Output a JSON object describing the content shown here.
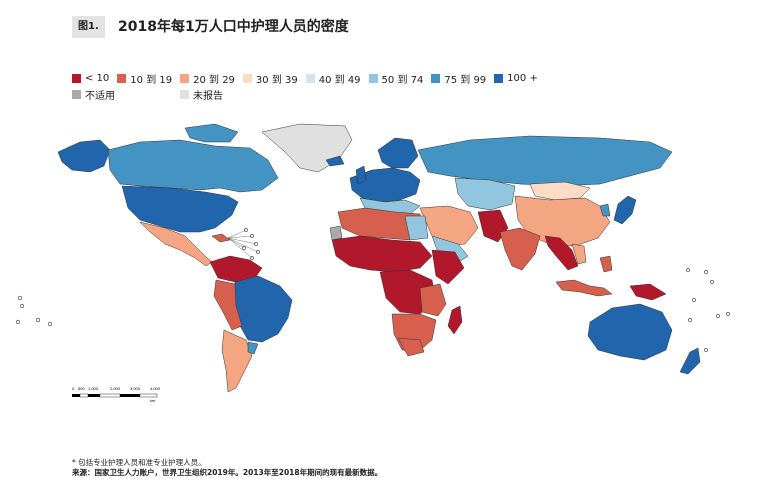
{
  "figure": {
    "label": "图1.",
    "title": "2018年每1万人口中护理人员的密度"
  },
  "legend": [
    {
      "label": "< 10",
      "color": "#b2182b"
    },
    {
      "label": "10 到 19",
      "color": "#d6604d"
    },
    {
      "label": "20 到 29",
      "color": "#f4a582"
    },
    {
      "label": "30 到 39",
      "color": "#fddbc7"
    },
    {
      "label": "40 到 49",
      "color": "#d1e5f0"
    },
    {
      "label": "50 到 74",
      "color": "#92c5de"
    },
    {
      "label": "75 到 99",
      "color": "#4393c3"
    },
    {
      "label": "100 +",
      "color": "#2166ac"
    },
    {
      "label": "不适用",
      "color": "#aaaaaa"
    },
    {
      "label": "未报告",
      "color": "#e0e0e0"
    }
  ],
  "scale_bar": {
    "ticks": [
      "0",
      "500",
      "1,000",
      "2,000",
      "3,000",
      "4,000"
    ],
    "unit": "km"
  },
  "footnotes": {
    "note": "* 包括专业护理人员和准专业护理人员。",
    "source": "来源：国家卫生人力账户，世界卫生组织2019年。2013年至2018年期间的现有最新数据。"
  }
}
